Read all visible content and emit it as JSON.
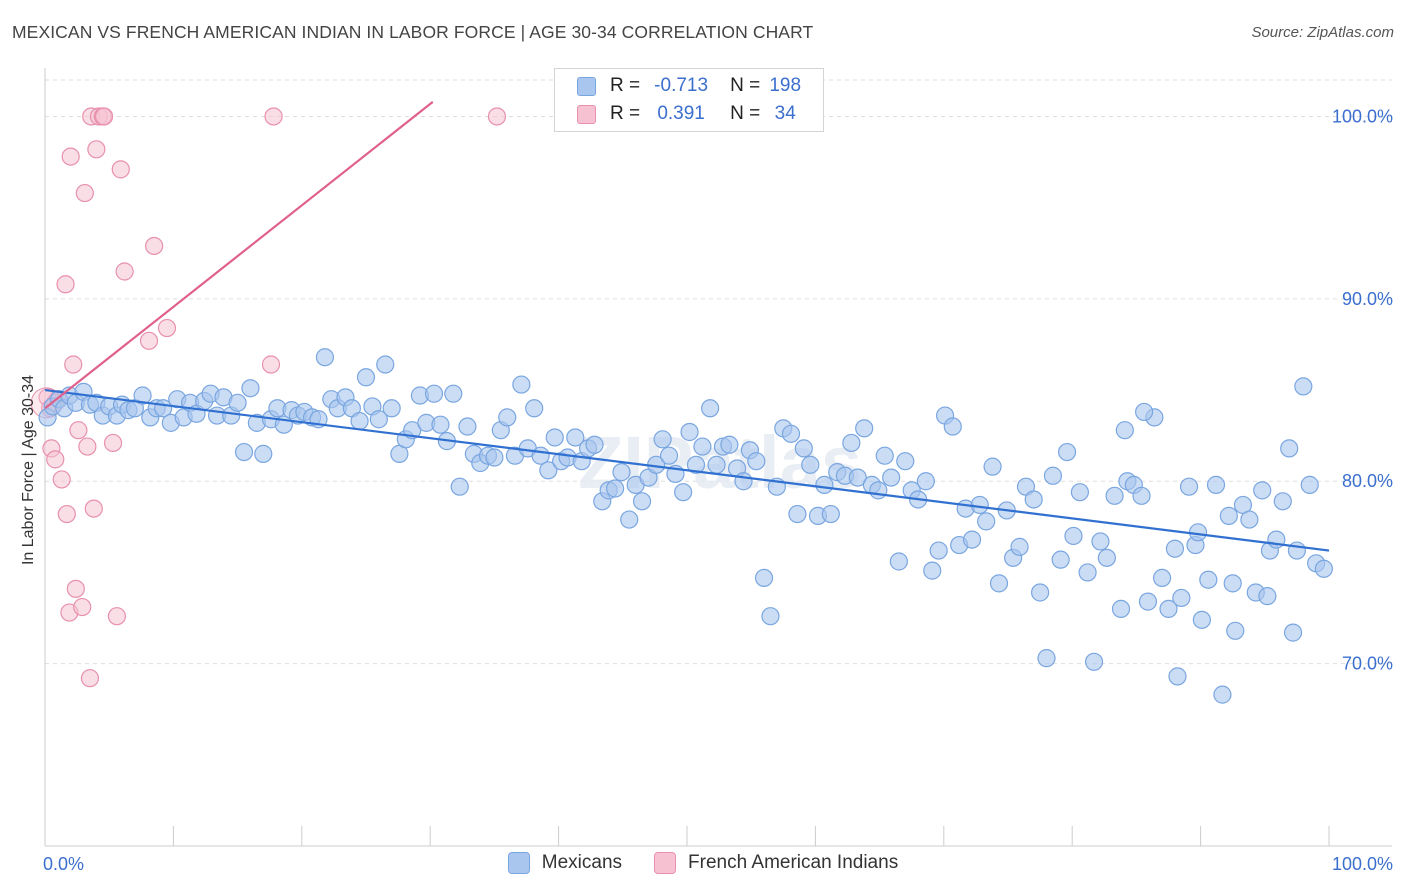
{
  "title": "MEXICAN VS FRENCH AMERICAN INDIAN IN LABOR FORCE | AGE 30-34 CORRELATION CHART",
  "source": "Source: ZipAtlas.com",
  "watermark": "ZIPatlas",
  "colors": {
    "mexicans_fill": "#a9c6ee",
    "mexicans_stroke": "#7aa6e0",
    "mexicans_line": "#3070d0",
    "french_fill": "#f6c2d2",
    "french_stroke": "#e890ae",
    "french_line": "#e0608c",
    "axis_text": "#3b6fce",
    "grid": "#dddddd"
  },
  "legend": {
    "rows": [
      {
        "r_label": "R =",
        "r_value": "-0.713",
        "n_label": "N =",
        "n_value": "198"
      },
      {
        "r_label": "R =",
        "r_value": "0.391",
        "n_label": "N =",
        "n_value": "34"
      }
    ]
  },
  "chart_data": {
    "type": "scatter",
    "title": "MEXICAN VS FRENCH AMERICAN INDIAN IN LABOR FORCE | AGE 30-34 CORRELATION CHART",
    "xlabel": "",
    "ylabel": "In Labor Force | Age 30-34",
    "xlim": [
      0,
      100
    ],
    "ylim": [
      60,
      102
    ],
    "x_tick_labels": [
      "0.0%",
      "100.0%"
    ],
    "y_ticks": [
      70,
      80,
      90,
      100
    ],
    "y_tick_labels": [
      "70.0%",
      "80.0%",
      "90.0%",
      "100.0%"
    ],
    "grid": true,
    "legend_position": "top-center",
    "series": [
      {
        "name": "Mexicans",
        "r": -0.713,
        "n": 198,
        "trend": {
          "x": [
            0,
            100
          ],
          "y": [
            85.0,
            76.2
          ]
        },
        "points": [
          [
            0.2,
            83.5
          ],
          [
            0.6,
            84.1
          ],
          [
            1.1,
            84.5
          ],
          [
            1.5,
            84.0
          ],
          [
            1.9,
            84.7
          ],
          [
            2.4,
            84.3
          ],
          [
            3.0,
            84.9
          ],
          [
            3.5,
            84.2
          ],
          [
            4.0,
            84.3
          ],
          [
            4.5,
            83.6
          ],
          [
            5.0,
            84.1
          ],
          [
            5.6,
            83.6
          ],
          [
            6.0,
            84.2
          ],
          [
            6.5,
            83.9
          ],
          [
            7.0,
            84.0
          ],
          [
            7.6,
            84.7
          ],
          [
            8.2,
            83.5
          ],
          [
            8.7,
            84.0
          ],
          [
            9.2,
            84.0
          ],
          [
            9.8,
            83.2
          ],
          [
            10.3,
            84.5
          ],
          [
            10.8,
            83.5
          ],
          [
            11.3,
            84.3
          ],
          [
            11.8,
            83.7
          ],
          [
            12.4,
            84.4
          ],
          [
            12.9,
            84.8
          ],
          [
            13.4,
            83.6
          ],
          [
            13.9,
            84.6
          ],
          [
            14.5,
            83.6
          ],
          [
            15.0,
            84.3
          ],
          [
            15.5,
            81.6
          ],
          [
            16.0,
            85.1
          ],
          [
            16.5,
            83.2
          ],
          [
            17.0,
            81.5
          ],
          [
            17.6,
            83.4
          ],
          [
            18.1,
            84.0
          ],
          [
            18.6,
            83.1
          ],
          [
            19.2,
            83.9
          ],
          [
            19.7,
            83.6
          ],
          [
            20.2,
            83.8
          ],
          [
            20.8,
            83.5
          ],
          [
            21.3,
            83.4
          ],
          [
            21.8,
            86.8
          ],
          [
            22.3,
            84.5
          ],
          [
            22.8,
            84.0
          ],
          [
            23.4,
            84.6
          ],
          [
            23.9,
            84.0
          ],
          [
            24.5,
            83.3
          ],
          [
            25.0,
            85.7
          ],
          [
            25.5,
            84.1
          ],
          [
            26.0,
            83.4
          ],
          [
            26.5,
            86.4
          ],
          [
            27.0,
            84.0
          ],
          [
            27.6,
            81.5
          ],
          [
            28.1,
            82.3
          ],
          [
            28.6,
            82.8
          ],
          [
            29.2,
            84.7
          ],
          [
            29.7,
            83.2
          ],
          [
            30.3,
            84.8
          ],
          [
            30.8,
            83.1
          ],
          [
            31.3,
            82.2
          ],
          [
            31.8,
            84.8
          ],
          [
            32.3,
            79.7
          ],
          [
            32.9,
            83.0
          ],
          [
            33.4,
            81.5
          ],
          [
            33.9,
            81.0
          ],
          [
            34.5,
            81.4
          ],
          [
            35.0,
            81.3
          ],
          [
            35.5,
            82.8
          ],
          [
            36.0,
            83.5
          ],
          [
            36.6,
            81.4
          ],
          [
            37.1,
            85.3
          ],
          [
            37.6,
            81.8
          ],
          [
            38.1,
            84.0
          ],
          [
            38.6,
            81.4
          ],
          [
            39.2,
            80.6
          ],
          [
            39.7,
            82.4
          ],
          [
            40.2,
            81.1
          ],
          [
            40.7,
            81.3
          ],
          [
            41.3,
            82.4
          ],
          [
            41.8,
            81.1
          ],
          [
            42.3,
            81.8
          ],
          [
            42.8,
            82.0
          ],
          [
            43.4,
            78.9
          ],
          [
            43.9,
            79.5
          ],
          [
            44.4,
            79.6
          ],
          [
            44.9,
            80.5
          ],
          [
            45.5,
            77.9
          ],
          [
            46.0,
            79.8
          ],
          [
            46.5,
            78.9
          ],
          [
            47.0,
            80.2
          ],
          [
            47.6,
            80.9
          ],
          [
            48.1,
            82.3
          ],
          [
            48.6,
            81.4
          ],
          [
            49.1,
            80.4
          ],
          [
            49.7,
            79.4
          ],
          [
            50.2,
            82.7
          ],
          [
            50.7,
            80.9
          ],
          [
            51.2,
            81.9
          ],
          [
            51.8,
            84.0
          ],
          [
            52.3,
            80.9
          ],
          [
            52.8,
            81.9
          ],
          [
            53.3,
            82.0
          ],
          [
            53.9,
            80.7
          ],
          [
            54.4,
            80.0
          ],
          [
            54.9,
            81.7
          ],
          [
            55.4,
            81.1
          ],
          [
            56.0,
            74.7
          ],
          [
            56.5,
            72.6
          ],
          [
            57.0,
            79.7
          ],
          [
            57.5,
            82.9
          ],
          [
            58.1,
            82.6
          ],
          [
            58.6,
            78.2
          ],
          [
            59.1,
            81.8
          ],
          [
            59.6,
            80.9
          ],
          [
            60.2,
            78.1
          ],
          [
            60.7,
            79.8
          ],
          [
            61.2,
            78.2
          ],
          [
            61.7,
            80.5
          ],
          [
            62.3,
            80.3
          ],
          [
            62.8,
            82.1
          ],
          [
            63.3,
            80.2
          ],
          [
            63.8,
            82.9
          ],
          [
            64.4,
            79.8
          ],
          [
            64.9,
            79.5
          ],
          [
            65.4,
            81.4
          ],
          [
            65.9,
            80.2
          ],
          [
            66.5,
            75.6
          ],
          [
            67.0,
            81.1
          ],
          [
            67.5,
            79.5
          ],
          [
            68.0,
            79.0
          ],
          [
            68.6,
            80.0
          ],
          [
            69.1,
            75.1
          ],
          [
            69.6,
            76.2
          ],
          [
            70.1,
            83.6
          ],
          [
            70.7,
            83.0
          ],
          [
            71.2,
            76.5
          ],
          [
            71.7,
            78.5
          ],
          [
            72.2,
            76.8
          ],
          [
            72.8,
            78.7
          ],
          [
            73.3,
            77.8
          ],
          [
            73.8,
            80.8
          ],
          [
            74.3,
            74.4
          ],
          [
            74.9,
            78.4
          ],
          [
            75.4,
            75.8
          ],
          [
            75.9,
            76.4
          ],
          [
            76.4,
            79.7
          ],
          [
            77.0,
            79.0
          ],
          [
            77.5,
            73.9
          ],
          [
            78.0,
            70.3
          ],
          [
            78.5,
            80.3
          ],
          [
            79.1,
            75.7
          ],
          [
            79.6,
            81.6
          ],
          [
            80.1,
            77.0
          ],
          [
            80.6,
            79.4
          ],
          [
            81.2,
            75.0
          ],
          [
            81.7,
            70.1
          ],
          [
            82.2,
            76.7
          ],
          [
            82.7,
            75.8
          ],
          [
            83.3,
            79.2
          ],
          [
            83.8,
            73.0
          ],
          [
            84.3,
            80.0
          ],
          [
            84.8,
            79.8
          ],
          [
            85.4,
            79.2
          ],
          [
            85.9,
            73.4
          ],
          [
            86.4,
            83.5
          ],
          [
            87.0,
            74.7
          ],
          [
            87.5,
            73.0
          ],
          [
            88.0,
            76.3
          ],
          [
            88.5,
            73.6
          ],
          [
            89.1,
            79.7
          ],
          [
            89.6,
            76.5
          ],
          [
            90.1,
            72.4
          ],
          [
            90.6,
            74.6
          ],
          [
            91.2,
            79.8
          ],
          [
            91.7,
            68.3
          ],
          [
            92.2,
            78.1
          ],
          [
            92.7,
            71.8
          ],
          [
            93.3,
            78.7
          ],
          [
            93.8,
            77.9
          ],
          [
            94.3,
            73.9
          ],
          [
            94.8,
            79.5
          ],
          [
            95.4,
            76.2
          ],
          [
            95.9,
            76.8
          ],
          [
            96.4,
            78.9
          ],
          [
            96.9,
            81.8
          ],
          [
            97.5,
            76.2
          ],
          [
            98.0,
            85.2
          ],
          [
            98.5,
            79.8
          ],
          [
            99.0,
            75.5
          ],
          [
            99.6,
            75.2
          ],
          [
            85.6,
            83.8
          ],
          [
            88.2,
            69.3
          ],
          [
            92.5,
            74.4
          ],
          [
            95.2,
            73.7
          ],
          [
            97.2,
            71.7
          ],
          [
            89.8,
            77.2
          ],
          [
            84.1,
            82.8
          ]
        ]
      },
      {
        "name": "French American Indians",
        "r": 0.391,
        "n": 34,
        "trend": {
          "x": [
            0,
            30.2
          ],
          "y": [
            84.0,
            100.8
          ]
        },
        "points": [
          [
            0.2,
            84.6
          ],
          [
            0.4,
            84.0
          ],
          [
            0.5,
            81.8
          ],
          [
            0.8,
            81.2
          ],
          [
            1.0,
            84.5
          ],
          [
            1.3,
            80.1
          ],
          [
            1.6,
            90.8
          ],
          [
            1.7,
            78.2
          ],
          [
            1.9,
            72.8
          ],
          [
            2.0,
            97.8
          ],
          [
            2.2,
            86.4
          ],
          [
            2.4,
            74.1
          ],
          [
            2.6,
            82.8
          ],
          [
            2.9,
            73.1
          ],
          [
            3.1,
            95.8
          ],
          [
            3.3,
            81.9
          ],
          [
            3.5,
            69.2
          ],
          [
            3.6,
            100.0
          ],
          [
            3.8,
            78.5
          ],
          [
            4.0,
            98.2
          ],
          [
            4.2,
            100.0
          ],
          [
            4.5,
            100.0
          ],
          [
            4.6,
            100.0
          ],
          [
            5.3,
            82.1
          ],
          [
            5.6,
            72.6
          ],
          [
            5.9,
            97.1
          ],
          [
            6.2,
            91.5
          ],
          [
            8.1,
            87.7
          ],
          [
            8.5,
            92.9
          ],
          [
            9.5,
            88.4
          ],
          [
            17.6,
            86.4
          ],
          [
            17.8,
            100.0
          ],
          [
            35.2,
            100.0
          ],
          [
            0.8,
            84.3
          ]
        ]
      }
    ]
  }
}
